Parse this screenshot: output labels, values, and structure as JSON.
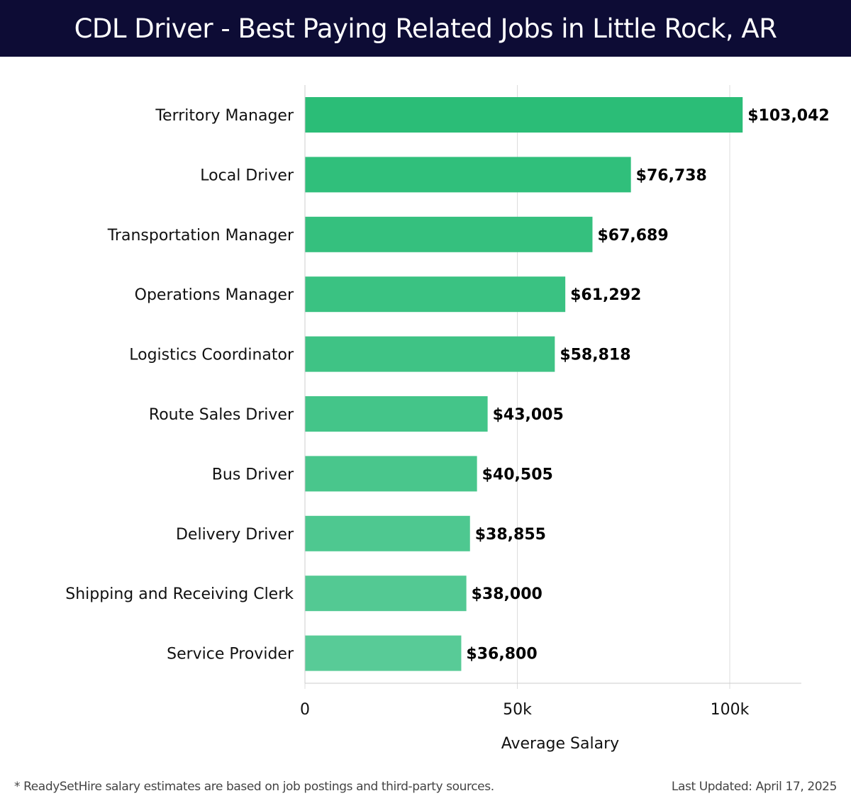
{
  "header": {
    "title": "CDL Driver - Best Paying Related Jobs in Little Rock, AR"
  },
  "footer": {
    "note": "* ReadySetHire salary estimates are based on job postings and third-party sources.",
    "updated": "Last Updated: April 17, 2025"
  },
  "chart_data": {
    "type": "bar",
    "orientation": "horizontal",
    "title": "CDL Driver - Best Paying Related Jobs in Little Rock, AR",
    "xlabel": "Average Salary",
    "ylabel": "",
    "categories": [
      "Territory Manager",
      "Local Driver",
      "Transportation Manager",
      "Operations Manager",
      "Logistics Coordinator",
      "Route Sales Driver",
      "Bus Driver",
      "Delivery Driver",
      "Shipping and Receiving Clerk",
      "Service Provider"
    ],
    "values": [
      103042,
      76738,
      67689,
      61292,
      58818,
      43005,
      40505,
      38855,
      38000,
      36800
    ],
    "value_labels": [
      "$103,042",
      "$76,738",
      "$67,689",
      "$61,292",
      "$58,818",
      "$43,005",
      "$40,505",
      "$38,855",
      "$38,000",
      "$36,800"
    ],
    "xlim": [
      0,
      108500
    ],
    "xticks": [
      0,
      50000,
      100000
    ],
    "xtick_labels": [
      "0",
      "50k",
      "100k"
    ],
    "grid": "vertical",
    "legend": "none",
    "colors": {
      "bar_top": "#2bbd77",
      "bar_bottom": "#58cb97",
      "grid": "#dddddd",
      "header_bg": "#0d0c35"
    }
  }
}
